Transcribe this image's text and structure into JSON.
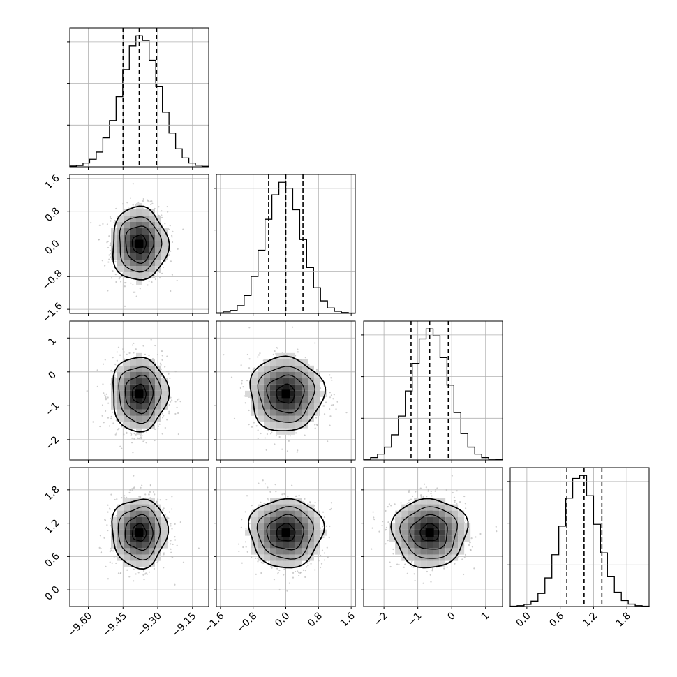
{
  "chart_data": {
    "type": "corner",
    "parameters": [
      {
        "ticks": [
          -9.6,
          -9.45,
          -9.3,
          -9.15
        ],
        "tick_labels": [
          "−9.60",
          "−9.45",
          "−9.30",
          "−9.15"
        ],
        "range": [
          -9.68,
          -9.08
        ],
        "quantiles": [
          -9.45,
          -9.38,
          -9.305
        ],
        "center": -9.38,
        "sd": 0.06
      },
      {
        "ticks": [
          -1.6,
          -0.8,
          0.0,
          0.8,
          1.6
        ],
        "tick_labels": [
          "−1.6",
          "−0.8",
          "0.0",
          "0.8",
          "1.6"
        ],
        "range": [
          -1.7,
          1.7
        ],
        "quantiles": [
          -0.42,
          0.0,
          0.42
        ],
        "center": 0.0,
        "sd": 0.45
      },
      {
        "ticks": [
          -2,
          -1,
          0,
          1
        ],
        "tick_labels": [
          "−2",
          "−1",
          "0",
          "1"
        ],
        "range": [
          -2.6,
          1.5
        ],
        "quantiles": [
          -1.2,
          -0.65,
          -0.1
        ],
        "center": -0.65,
        "sd": 0.55
      },
      {
        "ticks": [
          0.0,
          0.6,
          1.2,
          1.8
        ],
        "tick_labels": [
          "0.0",
          "0.6",
          "1.2",
          "1.8"
        ],
        "range": [
          -0.3,
          2.2
        ],
        "quantiles": [
          0.72,
          1.03,
          1.35
        ],
        "center": 1.03,
        "sd": 0.31
      }
    ],
    "histograms": [
      {
        "edges_range": [
          -9.68,
          -9.08
        ],
        "counts": [
          3,
          5,
          14,
          28,
          55,
          108,
          173,
          262,
          363,
          452,
          490,
          472,
          398,
          301,
          204,
          126,
          67,
          33,
          14,
          6,
          2
        ]
      },
      {
        "edges_range": [
          -1.7,
          1.7
        ],
        "counts": [
          2,
          5,
          10,
          26,
          60,
          124,
          212,
          316,
          398,
          440,
          420,
          348,
          248,
          154,
          86,
          42,
          18,
          7,
          3,
          1
        ]
      },
      {
        "edges_range": [
          -2.6,
          1.5
        ],
        "counts": [
          3,
          8,
          20,
          44,
          86,
          150,
          236,
          330,
          414,
          448,
          424,
          350,
          256,
          162,
          90,
          44,
          20,
          8,
          3,
          1
        ]
      },
      {
        "edges_range": [
          -0.3,
          2.2
        ],
        "counts": [
          1,
          3,
          7,
          18,
          44,
          96,
          174,
          270,
          364,
          430,
          440,
          372,
          276,
          180,
          100,
          48,
          20,
          8,
          3,
          1
        ]
      }
    ],
    "grid": true,
    "contour_levels": 4,
    "quantile_line_style": "dashed"
  }
}
